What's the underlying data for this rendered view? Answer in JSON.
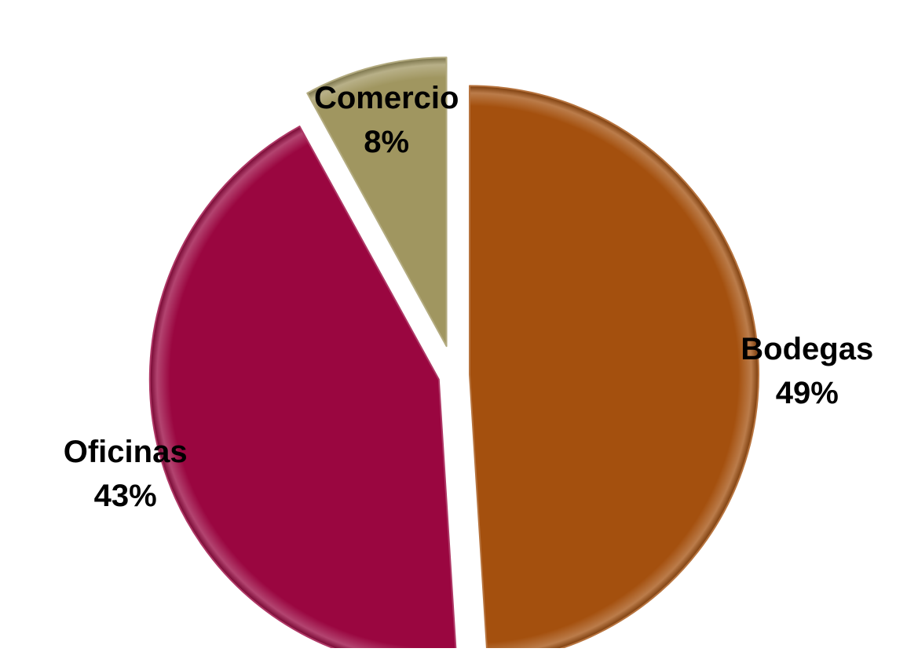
{
  "chart_data": {
    "type": "pie",
    "exploded": true,
    "style": "3d-beveled",
    "slices": [
      {
        "name": "Bodegas",
        "value": 49,
        "percent_label": "49%",
        "color": "#A4500E"
      },
      {
        "name": "Oficinas",
        "value": 43,
        "percent_label": "43%",
        "color": "#9A0640"
      },
      {
        "name": "Comercio",
        "value": 8,
        "percent_label": "8%",
        "color": "#A09660"
      }
    ],
    "label_position": "outside",
    "legend": "none"
  }
}
